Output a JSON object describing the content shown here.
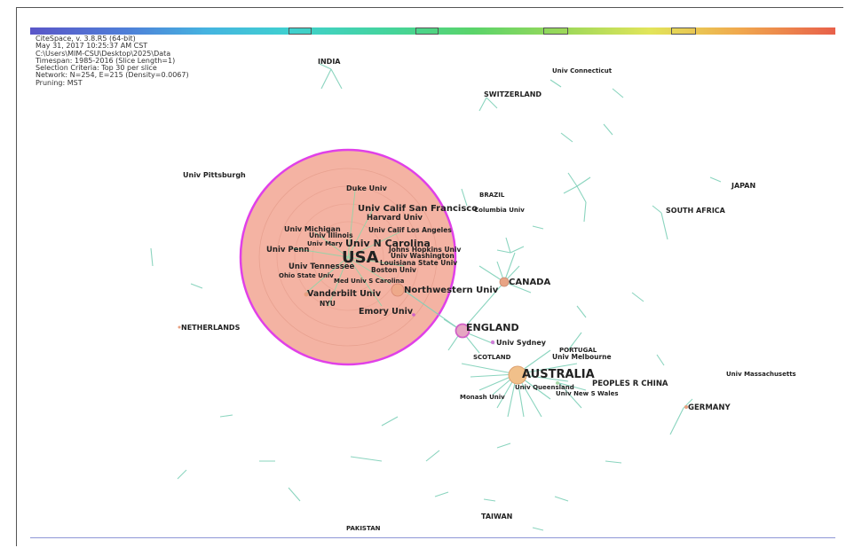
{
  "info_lines": [
    "CiteSpace, v. 3.8.R5 (64-bit)",
    "May 31, 2017 10:25:37 AM CST",
    "C:\\Users\\MIM-CSU\\Desktop\\2025\\Data",
    "Timespan: 1985-2016 (Slice Length=1)",
    "Selection Criteria: Top 30 per slice",
    "Network: N=254, E=215 (Density=0.0067)",
    "Pruning: MST"
  ],
  "colors": {
    "usa_fill": "#f4b3a3",
    "ring_stroke": "#e040e8",
    "edge": "#7ed0b8",
    "node": "#e8a080"
  },
  "labels": [
    {
      "id": "india",
      "text": "INDIA",
      "size": 8
    },
    {
      "id": "univ-connecticut",
      "text": "Univ Connecticut",
      "size": 7
    },
    {
      "id": "switzerland",
      "text": "SWITZERLAND",
      "size": 8
    },
    {
      "id": "univ-pittsburgh",
      "text": "Univ Pittsburgh",
      "size": 8
    },
    {
      "id": "duke-univ",
      "text": "Duke Univ",
      "size": 8
    },
    {
      "id": "brazil",
      "text": "BRAZIL",
      "size": 7
    },
    {
      "id": "japan",
      "text": "JAPAN",
      "size": 8
    },
    {
      "id": "univ-calif-san-francisco",
      "text": "Univ Calif San Francisco",
      "size": 10
    },
    {
      "id": "columbia-univ",
      "text": "Columbia Univ",
      "size": 7
    },
    {
      "id": "south-africa",
      "text": "SOUTH AFRICA",
      "size": 8
    },
    {
      "id": "harvard-univ",
      "text": "Harvard Univ",
      "size": 8.5
    },
    {
      "id": "univ-michigan",
      "text": "Univ Michigan",
      "size": 8
    },
    {
      "id": "univ-illinois",
      "text": "Univ Illinois",
      "size": 7.5
    },
    {
      "id": "univ-calif-los-angeles",
      "text": "Univ Calif Los Angeles",
      "size": 7.5
    },
    {
      "id": "univ-maryland",
      "text": "Univ Mary",
      "size": 7
    },
    {
      "id": "univ-n-carolina",
      "text": "Univ N Carolina",
      "size": 11
    },
    {
      "id": "univ-penn",
      "text": "Univ Penn",
      "size": 8.5
    },
    {
      "id": "usa",
      "text": "USA",
      "size": 18
    },
    {
      "id": "johns-hopkins-univ",
      "text": "Johns Hopkins Univ",
      "size": 7.5
    },
    {
      "id": "univ-washington",
      "text": "Univ Washington",
      "size": 7.5
    },
    {
      "id": "louisiana-state-univ",
      "text": "Louisiana State Univ",
      "size": 7.5
    },
    {
      "id": "univ-tennessee",
      "text": "Univ Tennessee",
      "size": 8.5
    },
    {
      "id": "boston-univ",
      "text": "Boston Univ",
      "size": 7.5
    },
    {
      "id": "ohio-state-univ",
      "text": "Ohio State Univ",
      "size": 7
    },
    {
      "id": "med-univ-s-carolina",
      "text": "Med Univ S Carolina",
      "size": 7
    },
    {
      "id": "canada",
      "text": "CANADA",
      "size": 10
    },
    {
      "id": "vanderbilt-univ",
      "text": "Vanderbilt Univ",
      "size": 9.5
    },
    {
      "id": "northwestern-univ",
      "text": "Northwestern Univ",
      "size": 10
    },
    {
      "id": "nyu",
      "text": "NYU",
      "size": 7.5
    },
    {
      "id": "emory-univ",
      "text": "Emory Univ",
      "size": 9.5
    },
    {
      "id": "netherlands",
      "text": "NETHERLANDS",
      "size": 8
    },
    {
      "id": "england",
      "text": "ENGLAND",
      "size": 11
    },
    {
      "id": "univ-sydney",
      "text": "Univ Sydney",
      "size": 8
    },
    {
      "id": "portugal",
      "text": "PORTUGAL",
      "size": 7
    },
    {
      "id": "scotland",
      "text": "SCOTLAND",
      "size": 7
    },
    {
      "id": "univ-melbourne",
      "text": "Univ Melbourne",
      "size": 7.5
    },
    {
      "id": "australia",
      "text": "AUSTRALIA",
      "size": 13
    },
    {
      "id": "univ-massachusetts",
      "text": "Univ Massachusetts",
      "size": 7
    },
    {
      "id": "peoples-r-china",
      "text": "PEOPLES R CHINA",
      "size": 8.5
    },
    {
      "id": "univ-queensland",
      "text": "Univ Queensland",
      "size": 7
    },
    {
      "id": "univ-new-s-wales",
      "text": "Univ New S Wales",
      "size": 7
    },
    {
      "id": "monash-univ",
      "text": "Monash Univ",
      "size": 7
    },
    {
      "id": "germany",
      "text": "GERMANY",
      "size": 8.5
    },
    {
      "id": "taiwan",
      "text": "TAIWAN",
      "size": 8
    },
    {
      "id": "pakistan",
      "text": "PAKISTAN",
      "size": 7
    }
  ]
}
